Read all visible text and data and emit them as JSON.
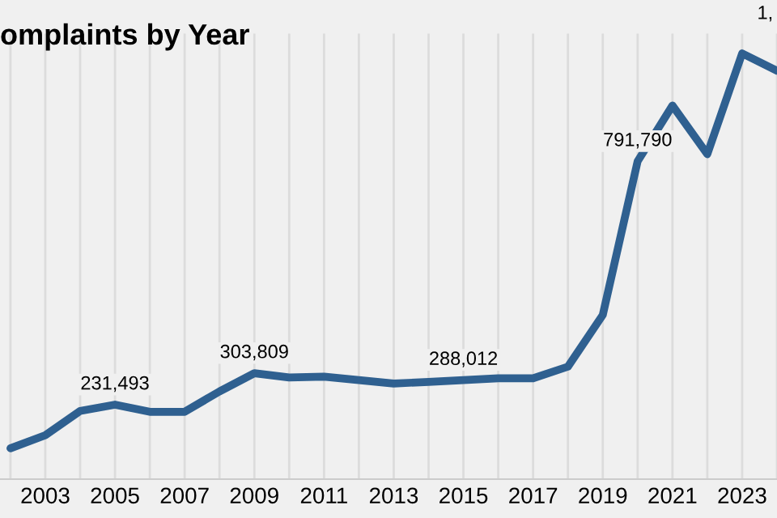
{
  "chart_data": {
    "type": "line",
    "title": "omplaints by Year",
    "x": [
      2002,
      2003,
      2004,
      2005,
      2006,
      2007,
      2008,
      2009,
      2010,
      2011,
      2012,
      2013,
      2014,
      2015,
      2016,
      2017,
      2018,
      2019,
      2020,
      2021,
      2022,
      2023,
      2024
    ],
    "series": [
      {
        "color": "#2f6090",
        "values": [
          131000,
          161000,
          217000,
          231493,
          215000,
          215000,
          262000,
          303809,
          294000,
          296000,
          288000,
          280000,
          284000,
          288012,
          292000,
          292000,
          319000,
          438000,
          791790,
          920000,
          808000,
          1040000,
          1000000
        ],
        "value_labels": [
          null,
          null,
          null,
          "231,493",
          null,
          null,
          null,
          "303,809",
          null,
          null,
          null,
          null,
          null,
          "288,012",
          null,
          null,
          null,
          null,
          "791,790",
          null,
          null,
          null,
          null
        ]
      }
    ],
    "annotations": [
      "1,"
    ],
    "xlim": [
      2001.7,
      2024
    ],
    "xticks": [
      2003,
      2005,
      2007,
      2009,
      2011,
      2013,
      2015,
      2017,
      2019,
      2021,
      2023
    ],
    "grid": "x",
    "marker": "none",
    "line_style": "solid",
    "tick_labels": "x"
  }
}
